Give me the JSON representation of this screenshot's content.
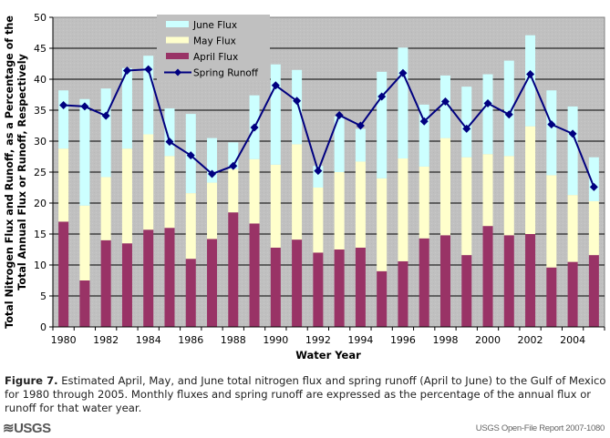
{
  "chart_data": {
    "type": "bar",
    "stacked": true,
    "title": "",
    "xlabel": "Water Year",
    "ylabel_line1": "Total Nitrogen Flux and Runoff, as a Percentage of the",
    "ylabel_line2": "Total Annual Flux or Runoff, Respectively",
    "ylim": [
      0,
      50
    ],
    "yticks": [
      0,
      5,
      10,
      15,
      20,
      25,
      30,
      35,
      40,
      45,
      50
    ],
    "ytick_labels": [
      "0",
      "5",
      "10",
      "15",
      "20",
      "25",
      "30",
      "35",
      "40",
      "45",
      "50"
    ],
    "categories": [
      1980,
      1981,
      1982,
      1983,
      1984,
      1985,
      1986,
      1987,
      1988,
      1989,
      1990,
      1991,
      1992,
      1993,
      1994,
      1995,
      1996,
      1997,
      1998,
      1999,
      2000,
      2001,
      2002,
      2003,
      2004,
      2005
    ],
    "xtick_labels": [
      "1980",
      "1982",
      "1984",
      "1986",
      "1988",
      "1990",
      "1992",
      "1994",
      "1996",
      "1998",
      "2000",
      "2002",
      "2004"
    ],
    "grid": true,
    "legend_position": "top-left",
    "series": [
      {
        "name": "June Flux",
        "kind": "bar",
        "color": "#ccffff",
        "values": [
          9.4,
          17.2,
          14.3,
          13.0,
          12.7,
          7.7,
          12.8,
          7.2,
          4.3,
          10.3,
          16.2,
          12.0,
          3.5,
          9.0,
          5.3,
          17.2,
          17.9,
          10.0,
          10.1,
          11.4,
          12.9,
          15.4,
          14.7,
          13.7,
          14.3,
          7.1
        ]
      },
      {
        "name": "May Flux",
        "kind": "bar",
        "color": "#ffffcc",
        "values": [
          11.8,
          12.1,
          10.2,
          15.3,
          15.4,
          11.6,
          10.6,
          9.1,
          7.0,
          10.4,
          13.4,
          15.4,
          10.5,
          12.5,
          13.9,
          15.0,
          16.6,
          11.6,
          15.7,
          15.8,
          11.6,
          12.8,
          17.4,
          14.9,
          10.8,
          8.7
        ]
      },
      {
        "name": "April Flux",
        "kind": "bar",
        "color": "#993366",
        "values": [
          17.0,
          7.5,
          14.0,
          13.5,
          15.7,
          16.0,
          11.0,
          14.2,
          18.5,
          16.7,
          12.8,
          14.1,
          12.0,
          12.5,
          12.8,
          9.0,
          10.6,
          14.3,
          14.8,
          11.6,
          16.3,
          14.8,
          15.0,
          9.6,
          10.5,
          11.6
        ]
      },
      {
        "name": "Spring Runoff",
        "kind": "line",
        "color": "#000080",
        "values": [
          35.8,
          35.6,
          34.1,
          41.4,
          41.6,
          29.9,
          27.7,
          24.7,
          26.0,
          32.2,
          39.0,
          36.5,
          25.2,
          34.2,
          32.5,
          37.2,
          41.0,
          33.2,
          36.4,
          32.0,
          36.1,
          34.3,
          40.8,
          32.7,
          31.2,
          22.6
        ]
      }
    ]
  },
  "caption": {
    "label": "Figure 7.",
    "text": " Estimated April, May, and June total nitrogen flux and spring runoff (April to June) to the Gulf of Mexico for 1980 through 2005. Monthly fluxes and spring runoff are expressed as the percentage of the annual flux or runoff for that water year."
  },
  "footer": {
    "logo_text": "≋USGS",
    "report": "USGS Open-File Report 2007-1080"
  }
}
